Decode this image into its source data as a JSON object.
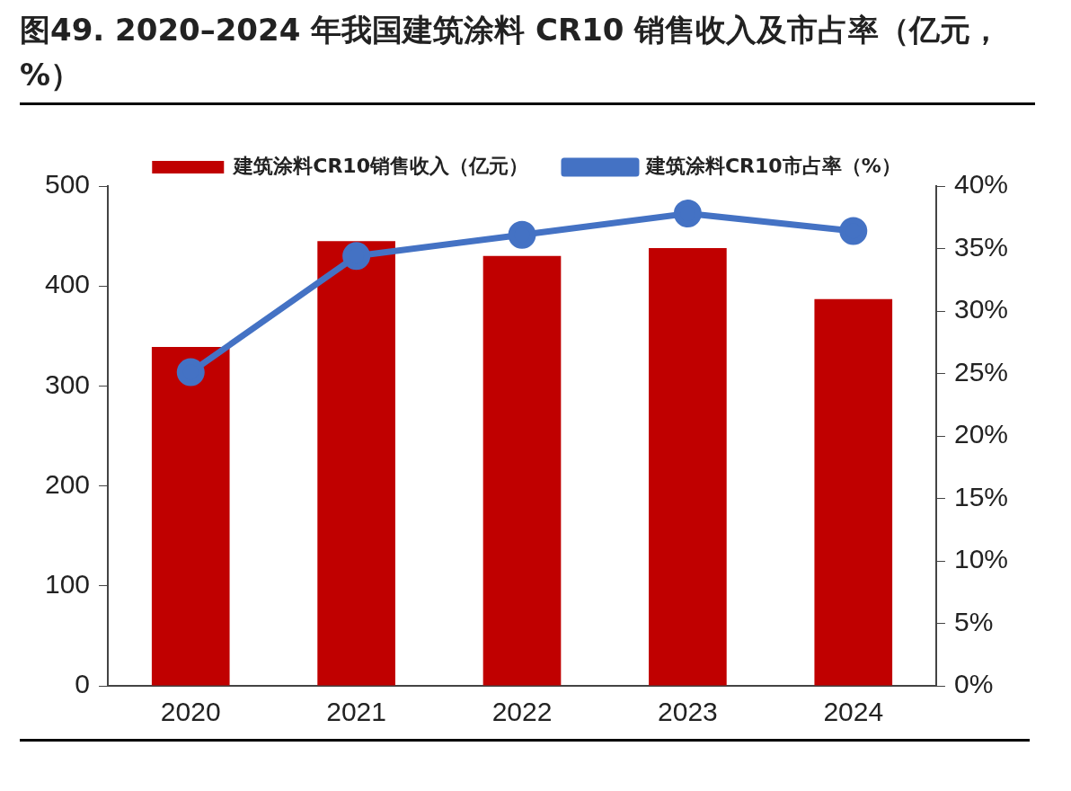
{
  "chart_data": {
    "type": "bar",
    "title": "图49. 2020–2024 年我国建筑涂料 CR10 销售收入及市占率（亿元，%）",
    "categories": [
      "2020",
      "2021",
      "2022",
      "2023",
      "2024"
    ],
    "series": [
      {
        "name": "建筑涂料CR10销售收入（亿元）",
        "color": "#c00000",
        "values": [
          339,
          445,
          430,
          438,
          387
        ]
      },
      {
        "name": "建筑涂料CR10市占率（%）",
        "type": "line",
        "axis": "y2",
        "color": "#4472c4",
        "marker": "circle",
        "values": [
          25.1,
          34.4,
          36.1,
          37.8,
          36.4
        ]
      }
    ],
    "ylim": [
      0,
      500
    ],
    "yticks": [
      0,
      100,
      200,
      300,
      400,
      500
    ],
    "y2lim": [
      0,
      40
    ],
    "y2ticks": [
      {
        "value": 0,
        "label": "0%"
      },
      {
        "value": 5,
        "label": "5%"
      },
      {
        "value": 10,
        "label": "10%"
      },
      {
        "value": 15,
        "label": "15%"
      },
      {
        "value": 20,
        "label": "20%"
      },
      {
        "value": 25,
        "label": "25%"
      },
      {
        "value": 30,
        "label": "30%"
      },
      {
        "value": 35,
        "label": "35%"
      },
      {
        "value": 40,
        "label": "40%"
      }
    ],
    "grid": false,
    "legend": "top"
  }
}
